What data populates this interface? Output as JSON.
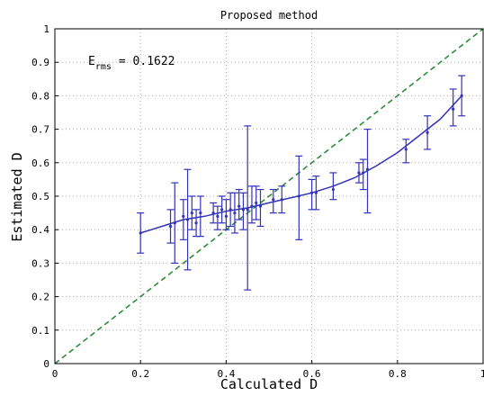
{
  "chart_data": {
    "type": "scatter",
    "title": "Proposed method",
    "xlabel": "Calculated D",
    "ylabel": "Estimated D",
    "xlim": [
      0,
      1
    ],
    "ylim": [
      0,
      1
    ],
    "grid": true,
    "xticks": [
      "0",
      "0.2",
      "0.4",
      "0.6",
      "0.8",
      "1"
    ],
    "yticks": [
      "0",
      "0.1",
      "0.2",
      "0.3",
      "0.4",
      "0.5",
      "0.6",
      "0.7",
      "0.8",
      "0.9",
      "1"
    ],
    "annotation": {
      "base": "E",
      "subscript": "rms",
      "text": "= 0.1622"
    },
    "colors": {
      "data": "#3333bb",
      "identity": "#2e8b3a",
      "grid": "#aaaaaa"
    },
    "series": [
      {
        "kind": "errorbar",
        "points": [
          {
            "x": 0.2,
            "y": 0.39,
            "lo": 0.33,
            "hi": 0.45
          },
          {
            "x": 0.27,
            "y": 0.41,
            "lo": 0.36,
            "hi": 0.46
          },
          {
            "x": 0.28,
            "y": 0.42,
            "lo": 0.3,
            "hi": 0.54
          },
          {
            "x": 0.3,
            "y": 0.44,
            "lo": 0.37,
            "hi": 0.49
          },
          {
            "x": 0.31,
            "y": 0.43,
            "lo": 0.28,
            "hi": 0.58
          },
          {
            "x": 0.32,
            "y": 0.45,
            "lo": 0.4,
            "hi": 0.5
          },
          {
            "x": 0.33,
            "y": 0.42,
            "lo": 0.38,
            "hi": 0.46
          },
          {
            "x": 0.34,
            "y": 0.45,
            "lo": 0.38,
            "hi": 0.5
          },
          {
            "x": 0.37,
            "y": 0.45,
            "lo": 0.42,
            "hi": 0.48
          },
          {
            "x": 0.38,
            "y": 0.44,
            "lo": 0.4,
            "hi": 0.47
          },
          {
            "x": 0.39,
            "y": 0.46,
            "lo": 0.42,
            "hi": 0.5
          },
          {
            "x": 0.4,
            "y": 0.44,
            "lo": 0.4,
            "hi": 0.49
          },
          {
            "x": 0.41,
            "y": 0.46,
            "lo": 0.41,
            "hi": 0.51
          },
          {
            "x": 0.42,
            "y": 0.45,
            "lo": 0.39,
            "hi": 0.51
          },
          {
            "x": 0.43,
            "y": 0.47,
            "lo": 0.43,
            "hi": 0.52
          },
          {
            "x": 0.44,
            "y": 0.46,
            "lo": 0.4,
            "hi": 0.51
          },
          {
            "x": 0.45,
            "y": 0.46,
            "lo": 0.22,
            "hi": 0.71
          },
          {
            "x": 0.46,
            "y": 0.47,
            "lo": 0.42,
            "hi": 0.53
          },
          {
            "x": 0.47,
            "y": 0.48,
            "lo": 0.43,
            "hi": 0.53
          },
          {
            "x": 0.48,
            "y": 0.47,
            "lo": 0.41,
            "hi": 0.52
          },
          {
            "x": 0.51,
            "y": 0.49,
            "lo": 0.45,
            "hi": 0.52
          },
          {
            "x": 0.53,
            "y": 0.49,
            "lo": 0.45,
            "hi": 0.53
          },
          {
            "x": 0.57,
            "y": 0.5,
            "lo": 0.37,
            "hi": 0.62
          },
          {
            "x": 0.6,
            "y": 0.51,
            "lo": 0.46,
            "hi": 0.55
          },
          {
            "x": 0.61,
            "y": 0.51,
            "lo": 0.46,
            "hi": 0.56
          },
          {
            "x": 0.65,
            "y": 0.52,
            "lo": 0.49,
            "hi": 0.57
          },
          {
            "x": 0.71,
            "y": 0.57,
            "lo": 0.54,
            "hi": 0.6
          },
          {
            "x": 0.72,
            "y": 0.57,
            "lo": 0.52,
            "hi": 0.61
          },
          {
            "x": 0.73,
            "y": 0.58,
            "lo": 0.45,
            "hi": 0.7
          },
          {
            "x": 0.82,
            "y": 0.64,
            "lo": 0.6,
            "hi": 0.67
          },
          {
            "x": 0.87,
            "y": 0.69,
            "lo": 0.64,
            "hi": 0.74
          },
          {
            "x": 0.93,
            "y": 0.76,
            "lo": 0.71,
            "hi": 0.82
          },
          {
            "x": 0.95,
            "y": 0.8,
            "lo": 0.74,
            "hi": 0.86
          }
        ]
      },
      {
        "kind": "fit-curve",
        "x": [
          0.2,
          0.25,
          0.3,
          0.35,
          0.4,
          0.45,
          0.5,
          0.55,
          0.6,
          0.65,
          0.7,
          0.75,
          0.8,
          0.85,
          0.9,
          0.95
        ],
        "y": [
          0.39,
          0.41,
          0.43,
          0.44,
          0.455,
          0.465,
          0.48,
          0.495,
          0.51,
          0.53,
          0.555,
          0.59,
          0.63,
          0.68,
          0.73,
          0.8
        ]
      },
      {
        "kind": "identity-line",
        "x": [
          0,
          1
        ],
        "y": [
          0,
          1
        ]
      }
    ]
  }
}
